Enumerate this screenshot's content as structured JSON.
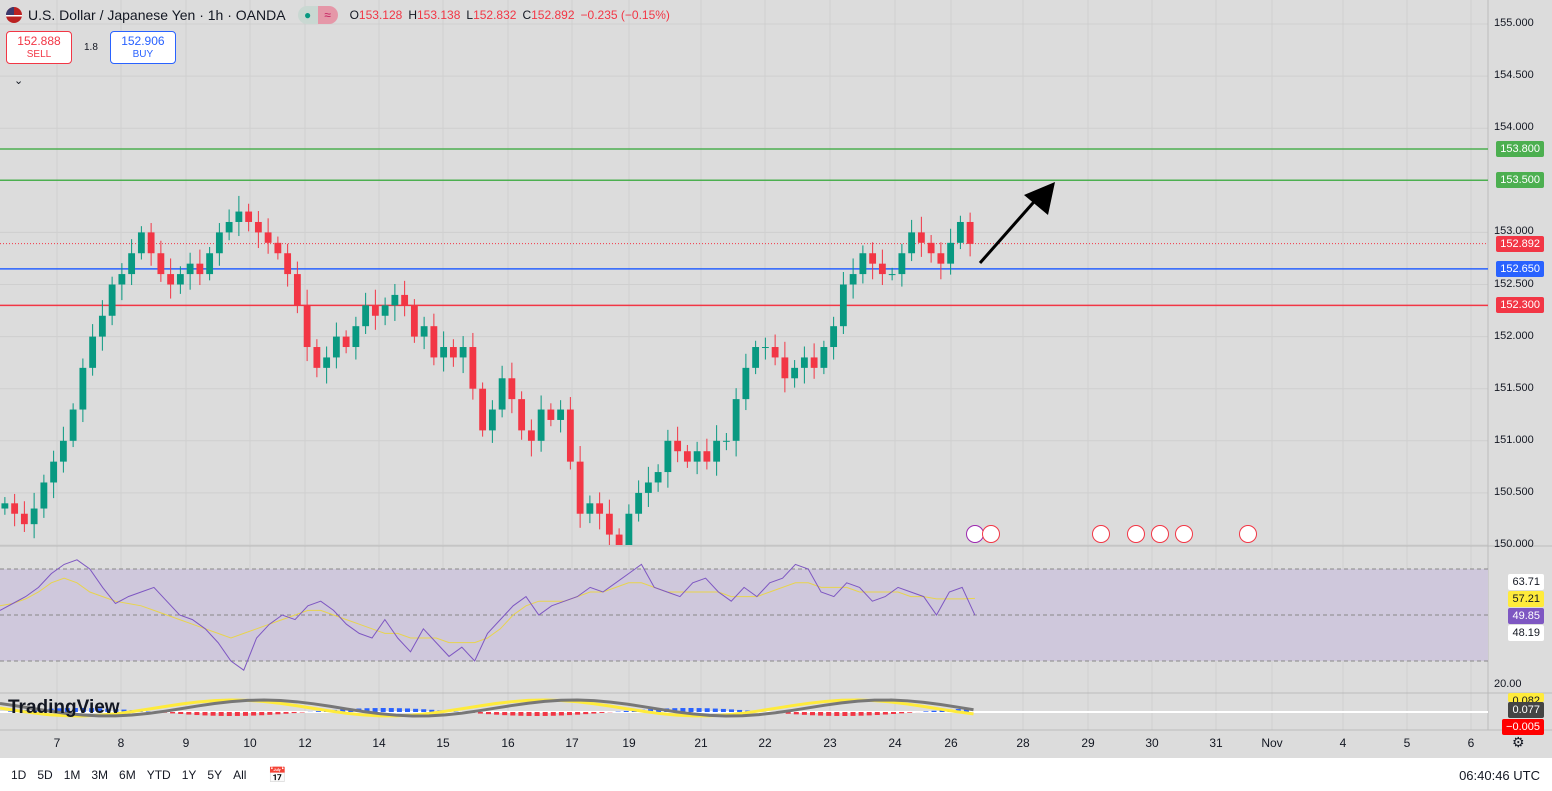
{
  "header": {
    "title": "U.S. Dollar / Japanese Yen · 1h · OANDA",
    "ohlc": {
      "o_label": "O",
      "o": "153.128",
      "h_label": "H",
      "h": "153.138",
      "l_label": "L",
      "l": "152.832",
      "c_label": "C",
      "c": "152.892",
      "change": "−0.235 (−0.15%)"
    },
    "pill_icons": [
      "market-dot",
      "wave"
    ]
  },
  "trade": {
    "sell_price": "152.888",
    "sell_label": "SELL",
    "spread": "1.8",
    "buy_price": "152.906",
    "buy_label": "BUY"
  },
  "price_axis": {
    "ticks": [
      "155.000",
      "154.500",
      "154.000",
      "153.000",
      "152.500",
      "152.000",
      "151.500",
      "151.000",
      "150.500",
      "150.000"
    ]
  },
  "lines": [
    {
      "price": "153.800",
      "color": "#4caf50"
    },
    {
      "price": "153.500",
      "color": "#4caf50"
    },
    {
      "price": "152.650",
      "color": "#2962ff"
    },
    {
      "price": "152.300",
      "color": "#f23645"
    }
  ],
  "last_price": {
    "price": "152.892",
    "color": "#f23645"
  },
  "rsi": {
    "values_tags": [
      "63.71",
      "57.21",
      "49.85",
      "48.19"
    ],
    "tick": "20.00",
    "upper": 70,
    "lower": 30
  },
  "macd": {
    "tags": [
      "0.082",
      "0.077",
      "−0.005"
    ]
  },
  "time_axis": [
    "7",
    "8",
    "9",
    "10",
    "12",
    "14",
    "15",
    "16",
    "17",
    "19",
    "21",
    "22",
    "23",
    "24",
    "26",
    "28",
    "29",
    "30",
    "31",
    "Nov",
    "4",
    "5",
    "6"
  ],
  "ranges": [
    "1D",
    "5D",
    "1M",
    "3M",
    "6M",
    "YTD",
    "1Y",
    "5Y",
    "All"
  ],
  "clock": "06:40:46 UTC",
  "logo": "TradingView",
  "chart_data": {
    "type": "candlestick",
    "ylim": [
      150.0,
      155.0
    ],
    "closes": [
      150.4,
      150.3,
      150.2,
      150.35,
      150.6,
      150.8,
      151.0,
      151.3,
      151.7,
      152.0,
      152.2,
      152.5,
      152.6,
      152.8,
      153.0,
      152.8,
      152.6,
      152.5,
      152.6,
      152.7,
      152.6,
      152.8,
      153.0,
      153.1,
      153.2,
      153.1,
      153.0,
      152.9,
      152.8,
      152.6,
      152.3,
      151.9,
      151.7,
      151.8,
      152.0,
      151.9,
      152.1,
      152.3,
      152.2,
      152.3,
      152.4,
      152.3,
      152.0,
      152.1,
      151.8,
      151.9,
      151.8,
      151.9,
      151.5,
      151.1,
      151.3,
      151.6,
      151.4,
      151.1,
      151.0,
      151.3,
      151.2,
      151.3,
      150.8,
      150.3,
      150.4,
      150.3,
      150.1,
      150.0,
      150.3,
      150.5,
      150.6,
      150.7,
      151.0,
      150.9,
      150.8,
      150.9,
      150.8,
      151.0,
      151.0,
      151.4,
      151.7,
      151.9,
      151.9,
      151.8,
      151.6,
      151.7,
      151.8,
      151.7,
      151.9,
      152.1,
      152.5,
      152.6,
      152.8,
      152.7,
      152.6,
      152.6,
      152.8,
      153.0,
      152.9,
      152.8,
      152.7,
      152.9,
      153.1,
      152.89
    ],
    "rsi": [
      52,
      55,
      58,
      62,
      68,
      72,
      74,
      70,
      62,
      55,
      58,
      60,
      62,
      56,
      50,
      48,
      44,
      38,
      30,
      26,
      40,
      46,
      50,
      48,
      54,
      56,
      52,
      46,
      42,
      40,
      48,
      40,
      34,
      44,
      38,
      32,
      36,
      30,
      42,
      48,
      54,
      58,
      50,
      54,
      56,
      58,
      62,
      60,
      64,
      68,
      72,
      62,
      60,
      58,
      64,
      66,
      60,
      56,
      62,
      58,
      64,
      66,
      72,
      70,
      60,
      58,
      64,
      62,
      56,
      58,
      62,
      60,
      58,
      50,
      60,
      62,
      49.85
    ],
    "rsi_ma": [
      54,
      55,
      57,
      60,
      64,
      66,
      64,
      60,
      58,
      56,
      55,
      54,
      52,
      50,
      48,
      46,
      44,
      42,
      40,
      42,
      44,
      46,
      48,
      50,
      52,
      52,
      50,
      48,
      46,
      44,
      42,
      42,
      40,
      40,
      40,
      38,
      38,
      38,
      40,
      44,
      50,
      54,
      56,
      56,
      56,
      58,
      60,
      60,
      62,
      64,
      64,
      62,
      60,
      60,
      60,
      60,
      60,
      58,
      58,
      58,
      60,
      62,
      64,
      64,
      62,
      62,
      62,
      60,
      60,
      60,
      60,
      58,
      58,
      57,
      57,
      57,
      57.21
    ]
  }
}
